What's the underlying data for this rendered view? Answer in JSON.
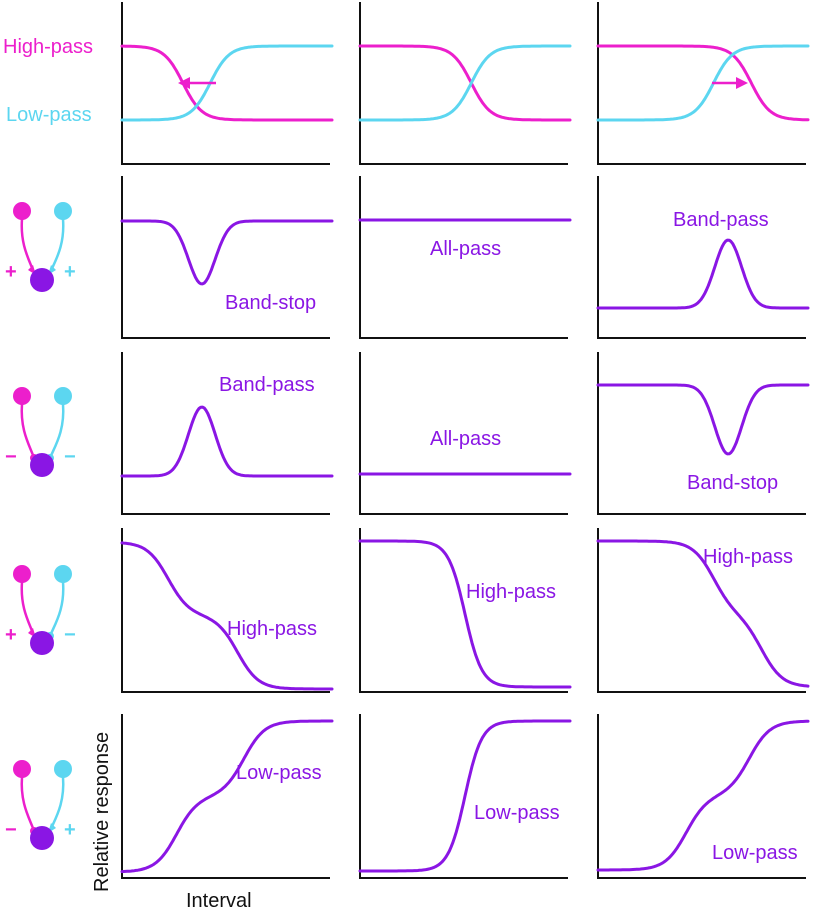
{
  "colors": {
    "magenta": "#ec1fcc",
    "cyan": "#5cd6f0",
    "purple": "#8a16e4",
    "axis": "#111111"
  },
  "texts": {
    "high_pass_left": "High-pass",
    "low_pass_left": "Low-pass",
    "y_axis_label": "Relative response",
    "x_axis_label": "Interval"
  },
  "panels": [
    {
      "row": 0,
      "col": 0,
      "curves": [
        {
          "color": "magenta",
          "shape": "falling"
        },
        {
          "color": "cyan",
          "shape": "rising"
        }
      ],
      "arrow": "left",
      "label": ""
    },
    {
      "row": 0,
      "col": 1,
      "curves": [
        {
          "color": "magenta",
          "shape": "falling"
        },
        {
          "color": "cyan",
          "shape": "rising"
        }
      ],
      "label": ""
    },
    {
      "row": 0,
      "col": 2,
      "curves": [
        {
          "color": "magenta",
          "shape": "falling"
        },
        {
          "color": "cyan",
          "shape": "rising"
        }
      ],
      "arrow": "right",
      "label": ""
    },
    {
      "row": 1,
      "col": 0,
      "curves": [
        {
          "color": "purple",
          "shape": "dip"
        }
      ],
      "label": "Band-stop"
    },
    {
      "row": 1,
      "col": 1,
      "curves": [
        {
          "color": "purple",
          "shape": "flat-high"
        }
      ],
      "label": "All-pass"
    },
    {
      "row": 1,
      "col": 2,
      "curves": [
        {
          "color": "purple",
          "shape": "peak"
        }
      ],
      "label": "Band-pass"
    },
    {
      "row": 2,
      "col": 0,
      "curves": [
        {
          "color": "purple",
          "shape": "peak"
        }
      ],
      "label": "Band-pass"
    },
    {
      "row": 2,
      "col": 1,
      "curves": [
        {
          "color": "purple",
          "shape": "flat-low"
        }
      ],
      "label": "All-pass"
    },
    {
      "row": 2,
      "col": 2,
      "curves": [
        {
          "color": "purple",
          "shape": "dip"
        }
      ],
      "label": "Band-stop"
    },
    {
      "row": 3,
      "col": 0,
      "curves": [
        {
          "color": "purple",
          "shape": "two-step-fall"
        }
      ],
      "label": "High-pass"
    },
    {
      "row": 3,
      "col": 1,
      "curves": [
        {
          "color": "purple",
          "shape": "fall"
        }
      ],
      "label": "High-pass"
    },
    {
      "row": 3,
      "col": 2,
      "curves": [
        {
          "color": "purple",
          "shape": "two-step-fall"
        }
      ],
      "label": "High-pass"
    },
    {
      "row": 4,
      "col": 0,
      "curves": [
        {
          "color": "purple",
          "shape": "two-step-rise"
        }
      ],
      "label": "Low-pass"
    },
    {
      "row": 4,
      "col": 1,
      "curves": [
        {
          "color": "purple",
          "shape": "rise"
        }
      ],
      "label": "Low-pass"
    },
    {
      "row": 4,
      "col": 2,
      "curves": [
        {
          "color": "purple",
          "shape": "two-step-rise"
        }
      ],
      "label": "Low-pass"
    }
  ],
  "synapse_icons": [
    {
      "row": 1,
      "magenta_sign": "+",
      "cyan_sign": "+"
    },
    {
      "row": 2,
      "magenta_sign": "−",
      "cyan_sign": "−"
    },
    {
      "row": 3,
      "magenta_sign": "+",
      "cyan_sign": "−"
    },
    {
      "row": 4,
      "magenta_sign": "−",
      "cyan_sign": "+"
    }
  ]
}
